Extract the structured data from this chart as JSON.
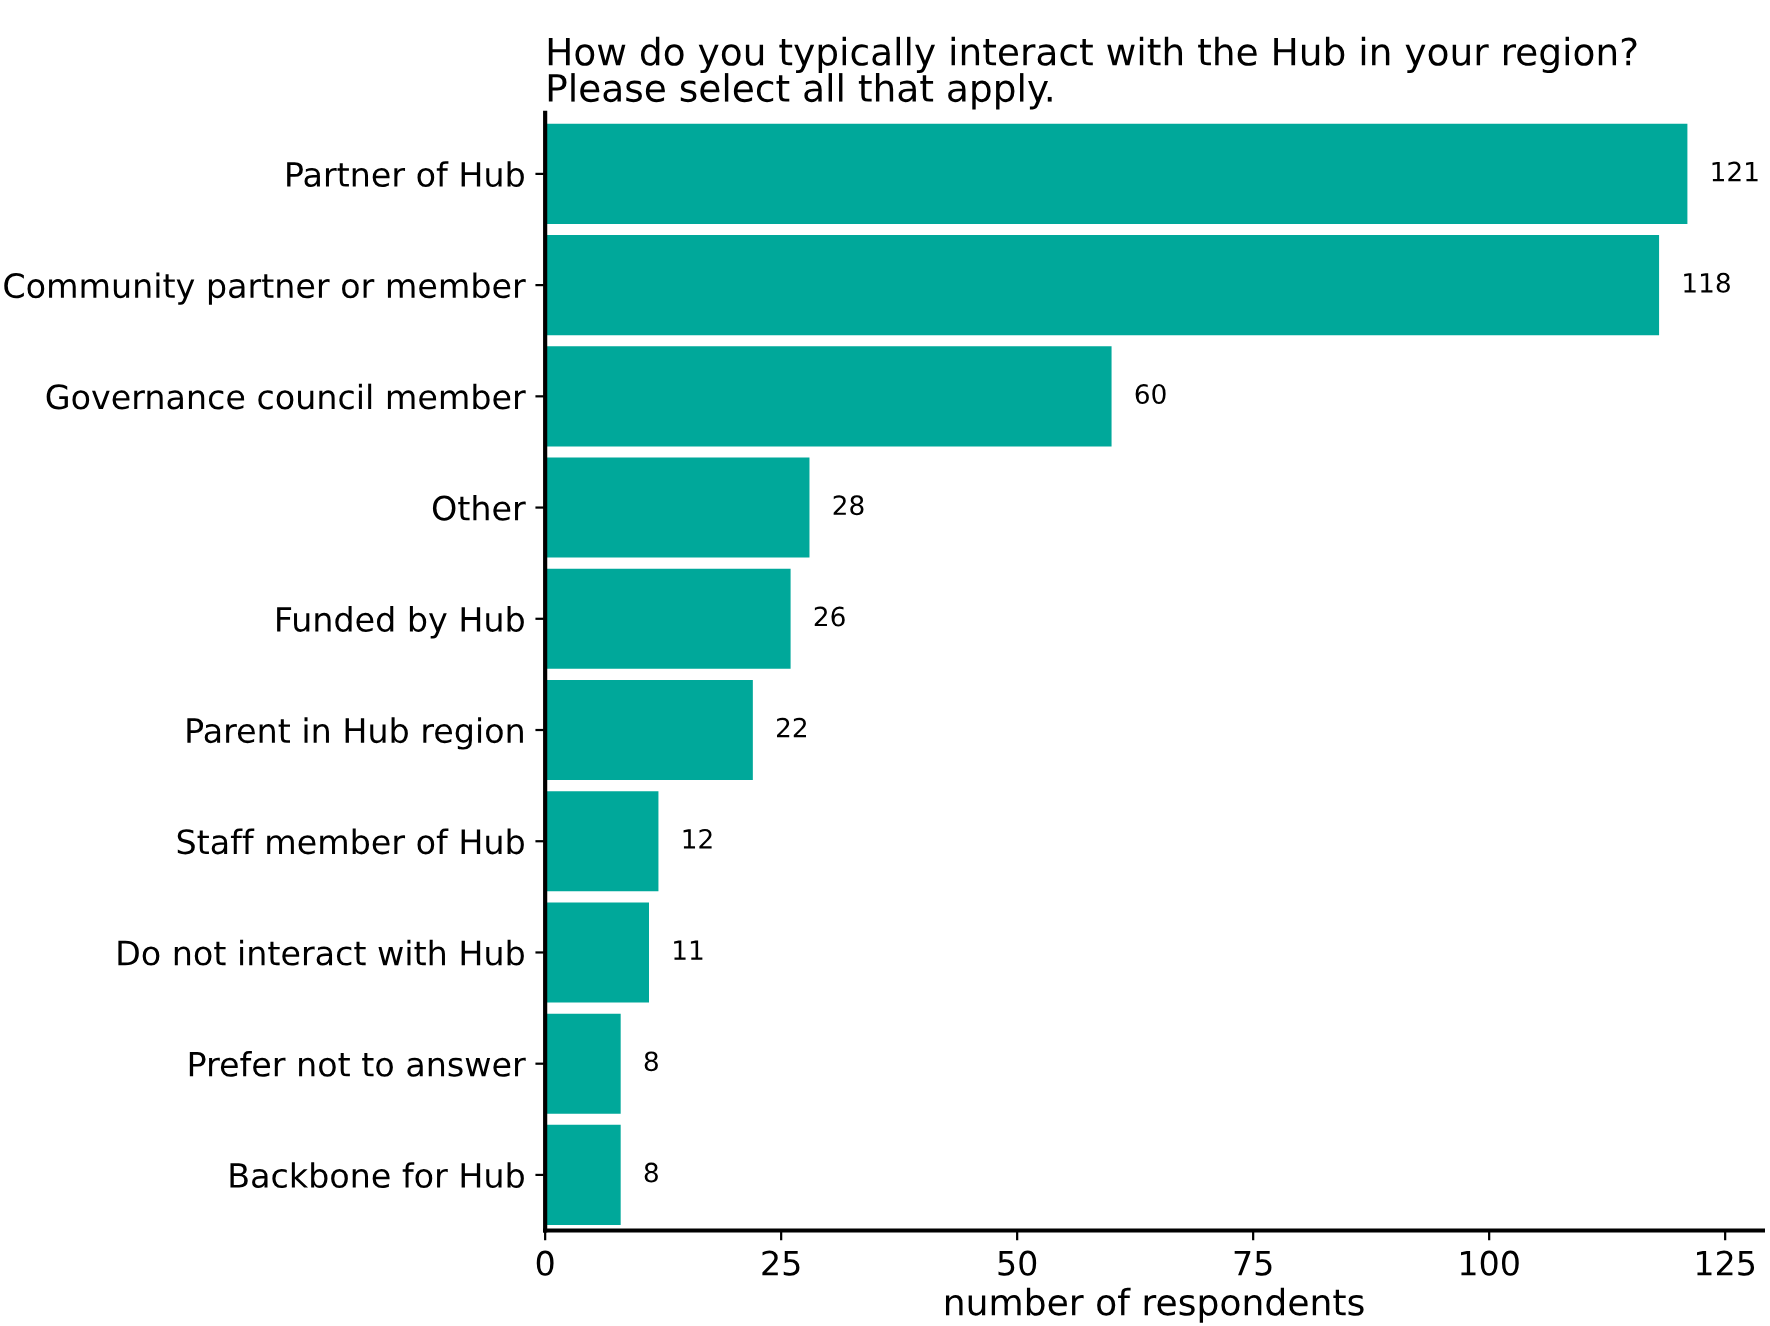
{
  "chart_data": {
    "type": "bar",
    "orientation": "horizontal",
    "title": "How do you typically interact with the Hub in your region?\nPlease select all that apply.",
    "xlabel": "number of respondents",
    "categories": [
      "Partner of Hub",
      "Community partner or member",
      "Governance council member",
      "Other",
      "Funded by Hub",
      "Parent in Hub region",
      "Staff member of Hub",
      "Do not interact with Hub",
      "Prefer not to answer",
      "Backbone for Hub"
    ],
    "values": [
      121,
      118,
      60,
      28,
      26,
      22,
      12,
      11,
      8,
      8
    ],
    "color": "#00a89a",
    "xlim": [
      0,
      129
    ],
    "xticks": [
      0,
      25,
      50,
      75,
      100,
      125
    ],
    "data_labels": true,
    "grid": false
  }
}
